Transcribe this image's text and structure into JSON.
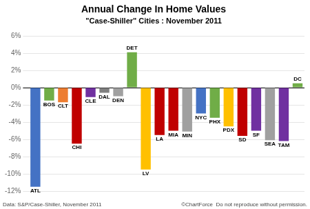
{
  "chart_data": {
    "type": "bar",
    "title": "Annual Change In Home Values",
    "subtitle": "\"Case-Shiller\" Cities : November 2011",
    "annotations": [
      "Data: S&P/Case-Shiller, November 2011",
      "©ChartForce  Do not reproduce without permission."
    ],
    "categories": [
      "ATL",
      "BOS",
      "CLT",
      "CHI",
      "CLE",
      "DAL",
      "DEN",
      "DET",
      "LV",
      "LA",
      "MIA",
      "MIN",
      "NYC",
      "PHX",
      "PDX",
      "SD",
      "SF",
      "SEA",
      "TAM",
      "DC"
    ],
    "values": [
      -11.5,
      -1.5,
      -1.7,
      -6.5,
      -1.1,
      -0.6,
      -1.0,
      4.1,
      -9.5,
      -5.5,
      -5.0,
      -5.1,
      -3.0,
      -3.5,
      -4.5,
      -5.6,
      -5.0,
      -6.1,
      -6.2,
      0.5
    ],
    "colors": [
      "#4472c4",
      "#70ad47",
      "#ed7d31",
      "#c00000",
      "#7030a0",
      "#808080",
      "#a0a0a0",
      "#70ad47",
      "#ffc000",
      "#c00000",
      "#c00000",
      "#a0a0a0",
      "#4472c4",
      "#70ad47",
      "#ffc000",
      "#c00000",
      "#7030a0",
      "#a0a0a0",
      "#7030a0",
      "#70ad47"
    ],
    "ylim": [
      -12,
      6
    ],
    "yticks": [
      {
        "value": -12,
        "label": "-12%"
      },
      {
        "value": -10,
        "label": "-10%"
      },
      {
        "value": -8,
        "label": "-8%"
      },
      {
        "value": -6,
        "label": "-6%"
      },
      {
        "value": -4,
        "label": "-4%"
      },
      {
        "value": -2,
        "label": "-2%"
      },
      {
        "value": 0,
        "label": "0%"
      },
      {
        "value": 2,
        "label": "2%"
      },
      {
        "value": 4,
        "label": "4%"
      },
      {
        "value": 6,
        "label": "6%"
      }
    ],
    "grid": true,
    "tick_labels": "y"
  }
}
